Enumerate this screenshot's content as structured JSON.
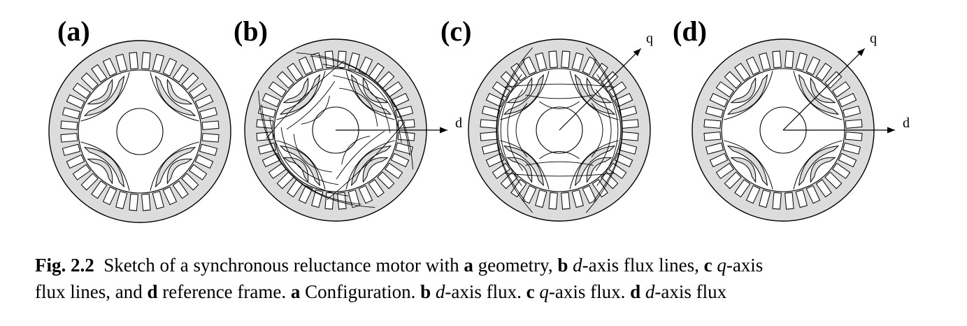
{
  "panels": [
    {
      "label": "(a)",
      "variant": "geometry",
      "axes": []
    },
    {
      "label": "(b)",
      "variant": "d-flux",
      "axes": [
        "d"
      ]
    },
    {
      "label": "(c)",
      "variant": "q-flux",
      "axes": [
        "q"
      ]
    },
    {
      "label": "(d)",
      "variant": "frame",
      "axes": [
        "q",
        "d"
      ]
    }
  ],
  "axis_names": {
    "d": "d",
    "q": "q"
  },
  "colors": {
    "iron": "#dcdcdc",
    "stroke": "#000000",
    "background": "#ffffff"
  },
  "caption": {
    "fig_number": "Fig. 2.2",
    "text_1": "Sketch of a synchronous reluctance motor with",
    "a": "a",
    "text_2": "geometry,",
    "b": "b",
    "d_italic": "d",
    "text_3": "-axis flux lines,",
    "c": "c",
    "q_italic": "q",
    "text_4": "-axis",
    "text_5": "flux lines, and",
    "d_bold": "d",
    "text_6": "reference frame.",
    "a2": "a",
    "text_7": "Configuration.",
    "b2": "b",
    "d_italic2": "d",
    "text_8": "-axis flux.",
    "c2": "c",
    "q_italic2": "q",
    "text_9": "-axis flux.",
    "d_bold2": "d",
    "d_italic3": "d",
    "text_10": "-axis flux"
  }
}
